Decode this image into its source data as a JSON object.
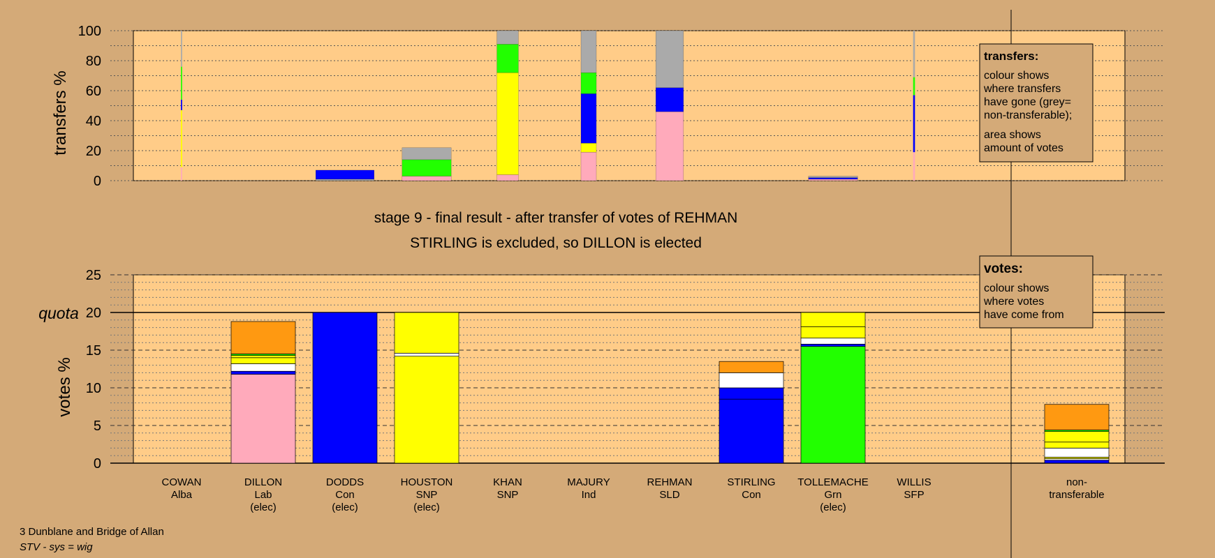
{
  "colors": {
    "page_bg": "#d4aa78",
    "panel_bg": "#ffcc88",
    "pink": "#ffaabb",
    "yellow": "#ffff00",
    "blue": "#0000ff",
    "green": "#22ff00",
    "grey": "#aaaaaa",
    "white": "#ffffff",
    "orange": "#ff9911",
    "black": "#000000"
  },
  "header": {
    "stage_line": "stage 9 - final result - after transfer of votes of REHMAN",
    "result_line": "STIRLING is excluded, so DILLON is elected"
  },
  "footer": {
    "ward": "3 Dunblane and Bridge of Allan",
    "system": "STV - sys = wig"
  },
  "legend_transfers": {
    "title": "transfers:",
    "lines": [
      "colour shows",
      "where transfers",
      "have gone (grey=",
      "non-transferable);"
    ],
    "lines2": [
      "area shows",
      "amount of votes"
    ]
  },
  "legend_votes": {
    "title": "votes:",
    "lines": [
      "colour shows",
      "where votes",
      "have come from"
    ]
  },
  "chart_data": [
    {
      "type": "bar",
      "name": "transfers",
      "ylabel": "transfers %",
      "ylim": [
        0,
        100
      ],
      "yticks": [
        0,
        20,
        40,
        60,
        80,
        100
      ],
      "categories": [
        "COWAN",
        "DILLON",
        "DODDS",
        "HOUSTON",
        "KHAN",
        "MAJURY",
        "REHMAN",
        "STIRLING",
        "TOLLEMACHE",
        "WILLIS"
      ],
      "bar_width_relative": [
        0.02,
        0,
        0.95,
        0.8,
        0.35,
        0.25,
        0.45,
        0,
        0.8,
        0.03
      ],
      "stacks": [
        [
          {
            "color": "pink",
            "from": 0,
            "to": 9
          },
          {
            "color": "yellow",
            "from": 9,
            "to": 47
          },
          {
            "color": "blue",
            "from": 47,
            "to": 54
          },
          {
            "color": "green",
            "from": 54,
            "to": 76
          },
          {
            "color": "grey",
            "from": 76,
            "to": 100
          }
        ],
        [],
        [
          {
            "color": "grey",
            "from": 0,
            "to": 1
          },
          {
            "color": "blue",
            "from": 1,
            "to": 7
          }
        ],
        [
          {
            "color": "pink",
            "from": 0,
            "to": 3
          },
          {
            "color": "green",
            "from": 3,
            "to": 14
          },
          {
            "color": "grey",
            "from": 14,
            "to": 22
          }
        ],
        [
          {
            "color": "pink",
            "from": 0,
            "to": 4
          },
          {
            "color": "yellow",
            "from": 4,
            "to": 72
          },
          {
            "color": "green",
            "from": 72,
            "to": 91
          },
          {
            "color": "grey",
            "from": 91,
            "to": 100
          }
        ],
        [
          {
            "color": "pink",
            "from": 0,
            "to": 19
          },
          {
            "color": "yellow",
            "from": 19,
            "to": 25
          },
          {
            "color": "blue",
            "from": 25,
            "to": 58
          },
          {
            "color": "green",
            "from": 58,
            "to": 72
          },
          {
            "color": "grey",
            "from": 72,
            "to": 100
          }
        ],
        [
          {
            "color": "pink",
            "from": 0,
            "to": 46
          },
          {
            "color": "blue",
            "from": 46,
            "to": 62
          },
          {
            "color": "grey",
            "from": 62,
            "to": 100
          }
        ],
        [],
        [
          {
            "color": "pink",
            "from": 0,
            "to": 1
          },
          {
            "color": "blue",
            "from": 1,
            "to": 2
          },
          {
            "color": "grey",
            "from": 2,
            "to": 3
          }
        ],
        [
          {
            "color": "pink",
            "from": 0,
            "to": 19
          },
          {
            "color": "blue",
            "from": 19,
            "to": 57
          },
          {
            "color": "green",
            "from": 57,
            "to": 69
          },
          {
            "color": "grey",
            "from": 69,
            "to": 100
          }
        ]
      ]
    },
    {
      "type": "bar",
      "name": "votes",
      "ylabel": "votes %",
      "ylim": [
        0,
        25
      ],
      "yticks": [
        0,
        5,
        10,
        15,
        20,
        25
      ],
      "quota": 20,
      "quota_label": "quota",
      "categories": [
        {
          "name": "COWAN",
          "party": "Alba",
          "elected": ""
        },
        {
          "name": "DILLON",
          "party": "Lab",
          "elected": "(elec)"
        },
        {
          "name": "DODDS",
          "party": "Con",
          "elected": "(elec)"
        },
        {
          "name": "HOUSTON",
          "party": "SNP",
          "elected": "(elec)"
        },
        {
          "name": "KHAN",
          "party": "SNP",
          "elected": ""
        },
        {
          "name": "MAJURY",
          "party": "Ind",
          "elected": ""
        },
        {
          "name": "REHMAN",
          "party": "SLD",
          "elected": ""
        },
        {
          "name": "STIRLING",
          "party": "Con",
          "elected": ""
        },
        {
          "name": "TOLLEMACHE",
          "party": "Grn",
          "elected": "(elec)"
        },
        {
          "name": "WILLIS",
          "party": "SFP",
          "elected": ""
        }
      ],
      "extra_category": {
        "name": "non-",
        "party": "transferable",
        "elected": ""
      },
      "stacks": [
        [],
        [
          {
            "color": "pink",
            "from": 0,
            "to": 11.8
          },
          {
            "color": "blue",
            "from": 11.8,
            "to": 12.2
          },
          {
            "color": "white",
            "from": 12.2,
            "to": 13.2
          },
          {
            "color": "yellow",
            "from": 13.2,
            "to": 14.0
          },
          {
            "color": "yellow",
            "from": 14.0,
            "to": 14.3
          },
          {
            "color": "green",
            "from": 14.3,
            "to": 14.5
          },
          {
            "color": "orange",
            "from": 14.5,
            "to": 18.8
          }
        ],
        [
          {
            "color": "blue",
            "from": 0,
            "to": 20
          }
        ],
        [
          {
            "color": "yellow",
            "from": 0,
            "to": 14.2
          },
          {
            "color": "white",
            "from": 14.2,
            "to": 14.6
          },
          {
            "color": "yellow",
            "from": 14.6,
            "to": 20
          }
        ],
        [],
        [],
        [],
        [
          {
            "color": "blue",
            "from": 0,
            "to": 8.5
          },
          {
            "color": "blue",
            "from": 8.5,
            "to": 10.0
          },
          {
            "color": "white",
            "from": 10.0,
            "to": 12.0
          },
          {
            "color": "orange",
            "from": 12.0,
            "to": 13.5
          }
        ],
        [
          {
            "color": "green",
            "from": 0,
            "to": 15.5
          },
          {
            "color": "blue",
            "from": 15.5,
            "to": 15.8
          },
          {
            "color": "white",
            "from": 15.8,
            "to": 16.6
          },
          {
            "color": "yellow",
            "from": 16.6,
            "to": 18.1
          },
          {
            "color": "yellow",
            "from": 18.1,
            "to": 20
          }
        ],
        []
      ],
      "extra_stack": [
        {
          "color": "blue",
          "from": 0,
          "to": 0.4
        },
        {
          "color": "white",
          "from": 0.4,
          "to": 0.6
        },
        {
          "color": "yellow",
          "from": 0.6,
          "to": 0.8
        },
        {
          "color": "white",
          "from": 0.8,
          "to": 2.0
        },
        {
          "color": "yellow",
          "from": 2.0,
          "to": 2.8
        },
        {
          "color": "yellow",
          "from": 2.8,
          "to": 4.2
        },
        {
          "color": "green",
          "from": 4.2,
          "to": 4.4
        },
        {
          "color": "orange",
          "from": 4.4,
          "to": 7.8
        }
      ]
    }
  ]
}
